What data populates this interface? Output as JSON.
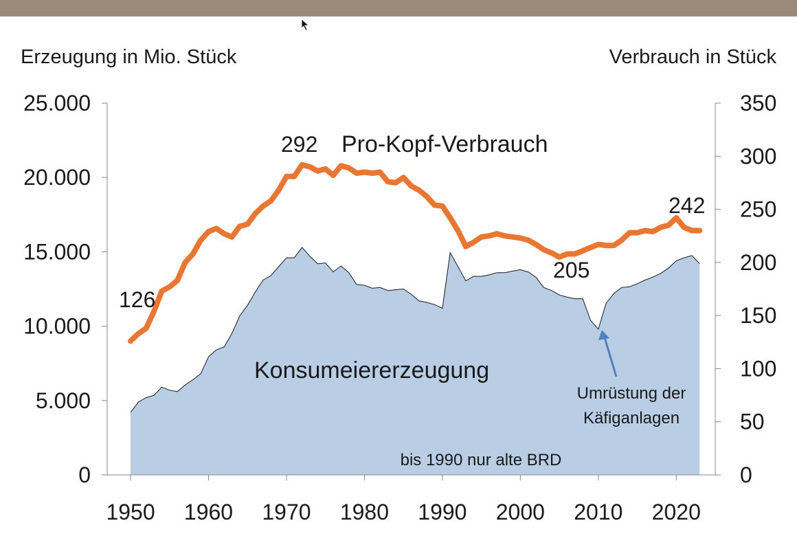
{
  "chart_data": {
    "type": "area",
    "left_axis_title": "Erzeugung in Mio. Stück",
    "right_axis_title": "Verbrauch in Stück",
    "xlim": [
      1947,
      2025
    ],
    "ylim_left": [
      0,
      25000
    ],
    "ylim_right": [
      0,
      350
    ],
    "x_ticks": [
      "1950",
      "1960",
      "1970",
      "1980",
      "1990",
      "2000",
      "2010",
      "2020"
    ],
    "y_ticks_left": [
      "0",
      "5.000",
      "10.000",
      "15.000",
      "20.000",
      "25.000"
    ],
    "y_ticks_right": [
      "0",
      "50",
      "100",
      "150",
      "200",
      "250",
      "300",
      "350"
    ],
    "series": [
      {
        "name": "Konsumeiererzeugung",
        "axis": "left",
        "color": "#b9cde5",
        "x": [
          1950,
          1951,
          1952,
          1953,
          1954,
          1955,
          1956,
          1957,
          1958,
          1959,
          1960,
          1961,
          1962,
          1963,
          1964,
          1965,
          1966,
          1967,
          1968,
          1969,
          1970,
          1971,
          1972,
          1973,
          1974,
          1975,
          1976,
          1977,
          1978,
          1979,
          1980,
          1981,
          1982,
          1983,
          1984,
          1985,
          1986,
          1987,
          1988,
          1989,
          1990,
          1991,
          1992,
          1993,
          1994,
          1995,
          1996,
          1997,
          1998,
          1999,
          2000,
          2001,
          2002,
          2003,
          2004,
          2005,
          2006,
          2007,
          2008,
          2009,
          2010,
          2011,
          2012,
          2013,
          2014,
          2015,
          2016,
          2017,
          2018,
          2019,
          2020,
          2021,
          2022,
          2023
        ],
        "values": [
          4200,
          4900,
          5200,
          5350,
          5900,
          5700,
          5600,
          6050,
          6400,
          6800,
          7950,
          8400,
          8600,
          9500,
          10700,
          11400,
          12300,
          13100,
          13400,
          14000,
          14600,
          14600,
          15300,
          14700,
          14200,
          14250,
          13650,
          14050,
          13600,
          12800,
          12750,
          12550,
          12600,
          12400,
          12450,
          12500,
          12150,
          11700,
          11600,
          11450,
          11200,
          14950,
          14000,
          13050,
          13350,
          13350,
          13450,
          13600,
          13600,
          13700,
          13800,
          13650,
          13300,
          12600,
          12400,
          12100,
          11950,
          11850,
          11850,
          10400,
          9800,
          11550,
          12200,
          12600,
          12650,
          12850,
          13100,
          13300,
          13550,
          13900,
          14400,
          14600,
          14750,
          14200
        ]
      },
      {
        "name": "Pro-Kopf-Verbrauch",
        "axis": "right",
        "color": "#e87733",
        "x": [
          1950,
          1951,
          1952,
          1953,
          1954,
          1955,
          1956,
          1957,
          1958,
          1959,
          1960,
          1961,
          1962,
          1963,
          1964,
          1965,
          1966,
          1967,
          1968,
          1969,
          1970,
          1971,
          1972,
          1973,
          1974,
          1975,
          1976,
          1977,
          1978,
          1979,
          1980,
          1981,
          1982,
          1983,
          1984,
          1985,
          1986,
          1987,
          1988,
          1989,
          1990,
          1991,
          1992,
          1993,
          1994,
          1995,
          1996,
          1997,
          1998,
          1999,
          2000,
          2001,
          2002,
          2003,
          2004,
          2005,
          2006,
          2007,
          2008,
          2009,
          2010,
          2011,
          2012,
          2013,
          2014,
          2015,
          2016,
          2017,
          2018,
          2019,
          2020,
          2021,
          2022,
          2023
        ],
        "values": [
          126,
          133,
          138,
          154,
          173,
          177,
          183,
          200,
          208,
          221,
          229,
          232,
          227,
          224,
          234,
          236,
          246,
          253,
          258,
          268,
          281,
          281,
          292,
          290,
          286,
          288,
          282,
          291,
          289,
          284,
          285,
          284,
          285,
          276,
          275,
          280,
          272,
          268,
          262,
          254,
          253,
          242,
          230,
          215,
          219,
          224,
          225,
          227,
          225,
          224,
          223,
          221,
          217,
          212,
          209,
          205,
          208,
          208,
          211,
          214,
          217,
          216,
          216,
          221,
          228,
          228,
          230,
          229,
          233,
          235,
          242,
          233,
          230,
          230
        ]
      }
    ],
    "annotations": {
      "start_value": "126",
      "peak_value": "292",
      "low_value": "205",
      "recent_value": "242",
      "consumption_label": "Pro-Kopf-Verbrauch",
      "production_label": "Konsumeiererzeugung",
      "cage_note": [
        "Umrüstung der",
        "Käfiganlagen"
      ],
      "region_note": "bis 1990 nur alte BRD"
    }
  }
}
